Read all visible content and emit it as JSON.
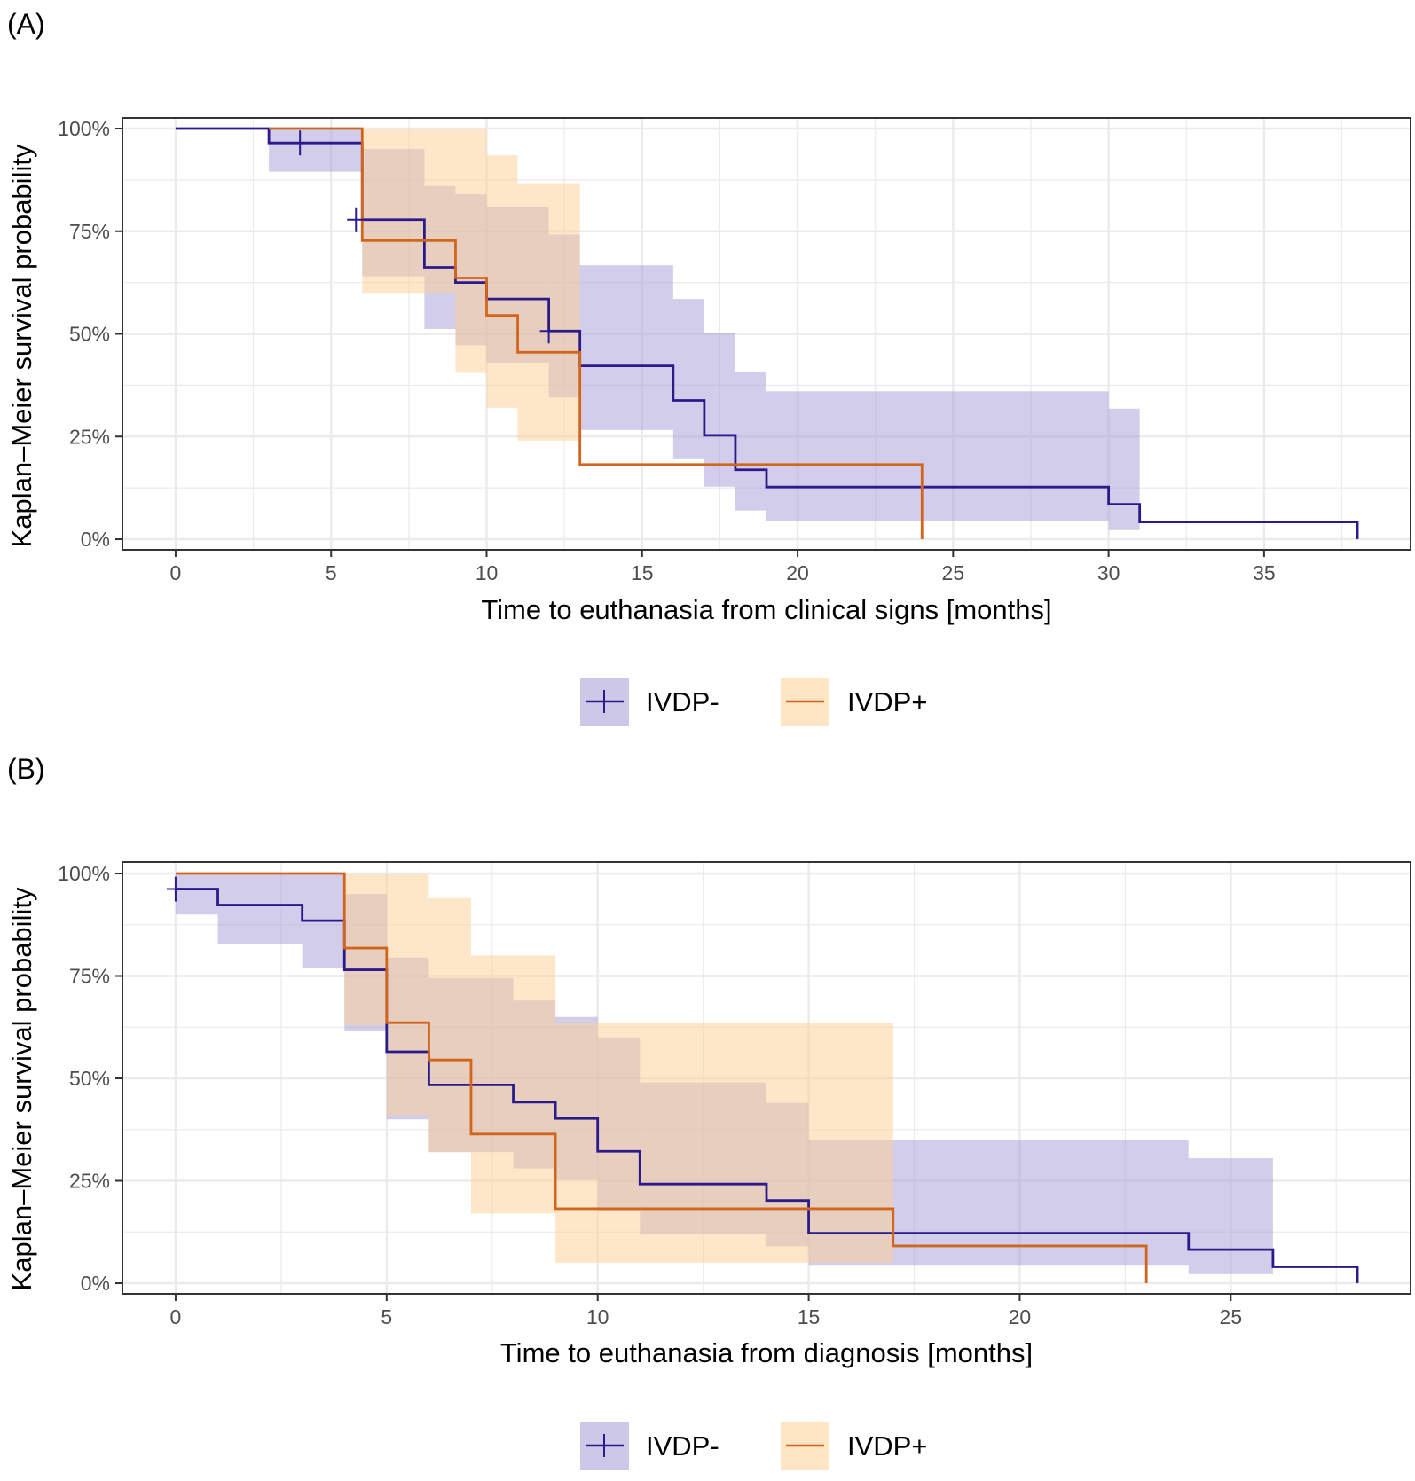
{
  "colors": {
    "ivdp_neg_line": "#2b1a8c",
    "ivdp_neg_band": "#a59bd6",
    "ivdp_pos_line": "#d2651c",
    "ivdp_pos_band": "#fdcf94",
    "grid": "#ebebeb",
    "panel_border": "#333333"
  },
  "chart_data": [
    {
      "panel": "(A)",
      "type": "line",
      "subtype": "kaplan-meier step",
      "xlabel": "Time to euthanasia from clinical signs [months]",
      "ylabel": "Kaplan–Meier survival probability",
      "xlim": [
        0,
        38
      ],
      "ylim": [
        0,
        1
      ],
      "xticks": [
        0,
        5,
        10,
        15,
        20,
        25,
        30,
        35
      ],
      "xtick_labels": [
        "0",
        "5",
        "10",
        "15",
        "20",
        "25",
        "30",
        "35"
      ],
      "yticks": [
        0,
        0.25,
        0.5,
        0.75,
        1
      ],
      "ytick_labels": [
        "0%",
        "25%",
        "50%",
        "75%",
        "100%"
      ],
      "legend": {
        "position": "bottom",
        "items": [
          "IVDP-",
          "IVDP+"
        ]
      },
      "series": [
        {
          "name": "IVDP-",
          "color_key": "ivdp_neg_line",
          "band_key": "ivdp_neg_band",
          "steps": [
            {
              "x": 0,
              "y": 1.0,
              "lo": 1.0,
              "hi": 1.0
            },
            {
              "x": 3,
              "y": 0.965,
              "lo": 0.895,
              "hi": 1.0
            },
            {
              "x": 6,
              "y": 0.778,
              "lo": 0.64,
              "hi": 0.95
            },
            {
              "x": 8,
              "y": 0.662,
              "lo": 0.512,
              "hi": 0.86
            },
            {
              "x": 9,
              "y": 0.625,
              "lo": 0.472,
              "hi": 0.84
            },
            {
              "x": 10,
              "y": 0.585,
              "lo": 0.43,
              "hi": 0.81
            },
            {
              "x": 12,
              "y": 0.507,
              "lo": 0.345,
              "hi": 0.742
            },
            {
              "x": 13,
              "y": 0.422,
              "lo": 0.266,
              "hi": 0.667
            },
            {
              "x": 16,
              "y": 0.338,
              "lo": 0.195,
              "hi": 0.585
            },
            {
              "x": 17,
              "y": 0.253,
              "lo": 0.128,
              "hi": 0.502
            },
            {
              "x": 18,
              "y": 0.169,
              "lo": 0.07,
              "hi": 0.408
            },
            {
              "x": 19,
              "y": 0.127,
              "lo": 0.045,
              "hi": 0.36
            },
            {
              "x": 30,
              "y": 0.085,
              "lo": 0.022,
              "hi": 0.318
            },
            {
              "x": 31,
              "y": 0.042,
              "lo": 0.042,
              "hi": 0.042
            },
            {
              "x": 38,
              "y": 0.0,
              "lo": 0.0,
              "hi": 0.0
            }
          ],
          "censored": [
            {
              "x": 4,
              "y": 0.965
            },
            {
              "x": 5.8,
              "y": 0.778
            },
            {
              "x": 12,
              "y": 0.507
            }
          ]
        },
        {
          "name": "IVDP+",
          "color_key": "ivdp_pos_line",
          "band_key": "ivdp_pos_band",
          "steps": [
            {
              "x": 3,
              "y": 1.0,
              "lo": 1.0,
              "hi": 1.0
            },
            {
              "x": 6,
              "y": 0.727,
              "lo": 0.6,
              "hi": 1.0
            },
            {
              "x": 9,
              "y": 0.636,
              "lo": 0.405,
              "hi": 1.0
            },
            {
              "x": 10,
              "y": 0.545,
              "lo": 0.32,
              "hi": 0.935
            },
            {
              "x": 11,
              "y": 0.455,
              "lo": 0.24,
              "hi": 0.867
            },
            {
              "x": 13,
              "y": 0.182,
              "lo": 0.182,
              "hi": 0.182
            },
            {
              "x": 24,
              "y": 0.0,
              "lo": 0.0,
              "hi": 0.0
            }
          ],
          "censored": []
        }
      ]
    },
    {
      "panel": "(B)",
      "type": "line",
      "subtype": "kaplan-meier step",
      "xlabel": "Time to euthanasia from diagnosis [months]",
      "ylabel": "Kaplan–Meier survival probability",
      "xlim": [
        0,
        28
      ],
      "ylim": [
        0,
        1
      ],
      "xticks": [
        0,
        5,
        10,
        15,
        20,
        25
      ],
      "xtick_labels": [
        "0",
        "5",
        "10",
        "15",
        "20",
        "25"
      ],
      "yticks": [
        0,
        0.25,
        0.5,
        0.75,
        1
      ],
      "ytick_labels": [
        "0%",
        "25%",
        "50%",
        "75%",
        "100%"
      ],
      "legend": {
        "position": "bottom",
        "items": [
          "IVDP-",
          "IVDP+"
        ]
      },
      "series": [
        {
          "name": "IVDP-",
          "color_key": "ivdp_neg_line",
          "band_key": "ivdp_neg_band",
          "steps": [
            {
              "x": 0,
              "y": 0.962,
              "lo": 0.9,
              "hi": 1.0
            },
            {
              "x": 1,
              "y": 0.923,
              "lo": 0.828,
              "hi": 1.0
            },
            {
              "x": 3,
              "y": 0.885,
              "lo": 0.77,
              "hi": 1.0
            },
            {
              "x": 4,
              "y": 0.765,
              "lo": 0.615,
              "hi": 0.95
            },
            {
              "x": 5,
              "y": 0.565,
              "lo": 0.4,
              "hi": 0.795
            },
            {
              "x": 6,
              "y": 0.484,
              "lo": 0.32,
              "hi": 0.745
            },
            {
              "x": 8,
              "y": 0.442,
              "lo": 0.28,
              "hi": 0.69
            },
            {
              "x": 9,
              "y": 0.402,
              "lo": 0.252,
              "hi": 0.65
            },
            {
              "x": 10,
              "y": 0.322,
              "lo": 0.175,
              "hi": 0.6
            },
            {
              "x": 11,
              "y": 0.242,
              "lo": 0.12,
              "hi": 0.49
            },
            {
              "x": 14,
              "y": 0.202,
              "lo": 0.09,
              "hi": 0.44
            },
            {
              "x": 15,
              "y": 0.122,
              "lo": 0.045,
              "hi": 0.35
            },
            {
              "x": 24,
              "y": 0.082,
              "lo": 0.022,
              "hi": 0.305
            },
            {
              "x": 26,
              "y": 0.04,
              "lo": 0.04,
              "hi": 0.04
            },
            {
              "x": 28,
              "y": 0.0,
              "lo": 0.0,
              "hi": 0.0
            }
          ],
          "censored": [
            {
              "x": 0,
              "y": 0.962
            }
          ]
        },
        {
          "name": "IVDP+",
          "color_key": "ivdp_pos_line",
          "band_key": "ivdp_pos_band",
          "steps": [
            {
              "x": 0,
              "y": 1.0,
              "lo": 1.0,
              "hi": 1.0
            },
            {
              "x": 4,
              "y": 0.818,
              "lo": 0.63,
              "hi": 1.0
            },
            {
              "x": 5,
              "y": 0.636,
              "lo": 0.41,
              "hi": 1.0
            },
            {
              "x": 6,
              "y": 0.545,
              "lo": 0.32,
              "hi": 0.94
            },
            {
              "x": 7,
              "y": 0.364,
              "lo": 0.17,
              "hi": 0.8
            },
            {
              "x": 9,
              "y": 0.182,
              "lo": 0.05,
              "hi": 0.635
            },
            {
              "x": 17,
              "y": 0.091,
              "lo": 0.091,
              "hi": 0.091
            },
            {
              "x": 23,
              "y": 0.0,
              "lo": 0.0,
              "hi": 0.0
            }
          ],
          "censored": []
        }
      ]
    }
  ]
}
